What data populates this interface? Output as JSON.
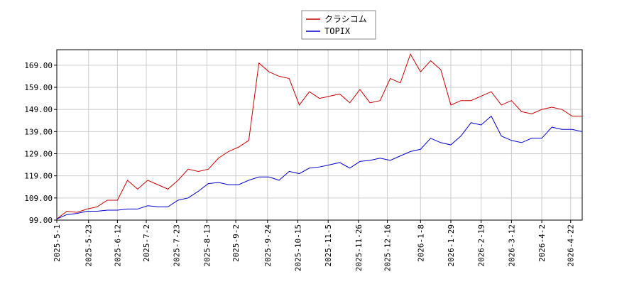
{
  "chart_data": {
    "type": "line",
    "legend": "upper center",
    "grid": true,
    "x": [
      "2025-05-01",
      "2025-05-08",
      "2025-05-15",
      "2025-05-22",
      "2025-05-29",
      "2025-06-05",
      "2025-06-12",
      "2025-06-19",
      "2025-06-26",
      "2025-07-03",
      "2025-07-10",
      "2025-07-17",
      "2025-07-24",
      "2025-07-31",
      "2025-08-07",
      "2025-08-14",
      "2025-08-21",
      "2025-08-28",
      "2025-09-04",
      "2025-09-11",
      "2025-09-18",
      "2025-09-25",
      "2025-10-02",
      "2025-10-09",
      "2025-10-16",
      "2025-10-23",
      "2025-10-30",
      "2025-11-06",
      "2025-11-13",
      "2025-11-20",
      "2025-11-27",
      "2025-12-04",
      "2025-12-11",
      "2025-12-18",
      "2025-12-25",
      "2026-01-01",
      "2026-01-08",
      "2026-01-15",
      "2026-01-22",
      "2026-01-29",
      "2026-02-05",
      "2026-02-12",
      "2026-02-19",
      "2026-02-26",
      "2026-03-05",
      "2026-03-12",
      "2026-03-19",
      "2026-03-26",
      "2026-04-02",
      "2026-04-09",
      "2026-04-16",
      "2026-04-23",
      "2026-04-30"
    ],
    "series": [
      {
        "name": "クラシコム",
        "color": "#cc0000",
        "values": [
          99.5,
          103,
          102.5,
          104,
          105,
          108,
          108,
          117,
          113,
          117,
          115,
          113,
          117,
          122,
          121,
          122,
          127,
          130,
          132,
          135,
          170,
          166,
          164,
          163,
          151,
          157,
          154,
          155,
          156,
          152,
          158,
          152,
          153,
          163,
          161,
          174,
          166,
          171,
          167,
          151,
          153,
          153,
          155,
          157,
          151,
          153,
          148,
          147,
          149,
          150,
          149,
          146,
          146
        ]
      },
      {
        "name": "TOPIX",
        "color": "#0000cc",
        "values": [
          99.5,
          101.5,
          102,
          103,
          103,
          103.5,
          103.5,
          104,
          104,
          105.5,
          105,
          105,
          108,
          109,
          112,
          115.5,
          116,
          115,
          115,
          117,
          118.5,
          118.5,
          117,
          121,
          120,
          122.5,
          123,
          124,
          125,
          122.5,
          125.5,
          126,
          127,
          126,
          128,
          130,
          131,
          136,
          134,
          133,
          137,
          143,
          142,
          146,
          137,
          135,
          134,
          136,
          136,
          141,
          140,
          140,
          139
        ]
      }
    ],
    "xlim": [
      "2025-05-01",
      "2026-04-30"
    ],
    "xticks": [
      {
        "value": "2025-05-01",
        "label": "2025-5-1"
      },
      {
        "value": "2025-05-23",
        "label": "2025-5-23"
      },
      {
        "value": "2025-06-12",
        "label": "2025-6-12"
      },
      {
        "value": "2025-07-02",
        "label": "2025-7-2"
      },
      {
        "value": "2025-07-23",
        "label": "2025-7-23"
      },
      {
        "value": "2025-08-13",
        "label": "2025-8-13"
      },
      {
        "value": "2025-09-02",
        "label": "2025-9-2"
      },
      {
        "value": "2025-09-24",
        "label": "2025-9-24"
      },
      {
        "value": "2025-10-15",
        "label": "2025-10-15"
      },
      {
        "value": "2025-11-05",
        "label": "2025-11-5"
      },
      {
        "value": "2025-11-26",
        "label": "2025-11-26"
      },
      {
        "value": "2025-12-16",
        "label": "2025-12-16"
      },
      {
        "value": "2026-01-08",
        "label": "2026-1-8"
      },
      {
        "value": "2026-01-29",
        "label": "2026-1-29"
      },
      {
        "value": "2026-02-19",
        "label": "2026-2-19"
      },
      {
        "value": "2026-03-12",
        "label": "2026-3-12"
      },
      {
        "value": "2026-04-02",
        "label": "2026-4-2"
      },
      {
        "value": "2026-04-22",
        "label": "2026-4-22"
      }
    ],
    "ylim": [
      99,
      176
    ],
    "yticks": [
      {
        "value": 99,
        "label": "99.00"
      },
      {
        "value": 109,
        "label": "109.00"
      },
      {
        "value": 119,
        "label": "119.00"
      },
      {
        "value": 129,
        "label": "129.00"
      },
      {
        "value": 139,
        "label": "139.00"
      },
      {
        "value": 149,
        "label": "149.00"
      },
      {
        "value": 159,
        "label": "159.00"
      },
      {
        "value": 169,
        "label": "169.00"
      }
    ]
  }
}
